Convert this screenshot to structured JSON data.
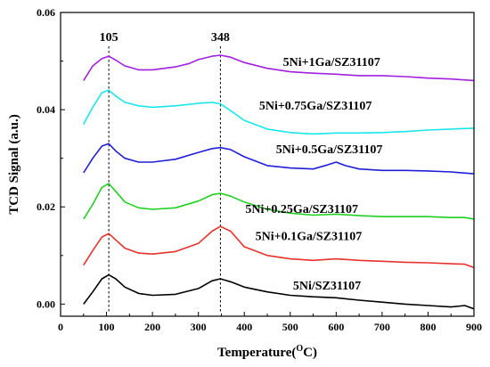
{
  "chart_data": {
    "type": "line",
    "title": "",
    "xlabel": "Temperature",
    "xlabel_unit_prefix": "(",
    "xlabel_unit_sup": "O",
    "xlabel_unit_suffix": "C)",
    "ylabel": "TCD Signal (a.u.)",
    "xlim": [
      0,
      900
    ],
    "ylim": [
      -0.0025,
      0.06
    ],
    "xticks": [
      0,
      100,
      200,
      300,
      400,
      500,
      600,
      700,
      800,
      900
    ],
    "yticks": [
      0.0,
      0.02,
      0.04,
      0.06
    ],
    "ytick_labels": [
      "0.00",
      "0.02",
      "0.04",
      "0.06"
    ],
    "grid": false,
    "legend": "inline-right",
    "annotations": [
      {
        "label": "105",
        "x": 105
      },
      {
        "label": "348",
        "x": 348
      }
    ],
    "series": [
      {
        "name": "5Ni/SZ31107",
        "color": "#000000",
        "label_anchor": [
          580,
          0.003
        ],
        "x": [
          50,
          70,
          90,
          105,
          120,
          140,
          170,
          200,
          250,
          300,
          330,
          348,
          370,
          400,
          450,
          500,
          550,
          600,
          650,
          700,
          750,
          800,
          850,
          880,
          900
        ],
        "y": [
          0.0,
          0.0025,
          0.0052,
          0.006,
          0.0052,
          0.0035,
          0.0022,
          0.0018,
          0.002,
          0.0032,
          0.0048,
          0.0052,
          0.0046,
          0.0035,
          0.0025,
          0.0018,
          0.0015,
          0.0013,
          0.0008,
          0.0004,
          0.0,
          -0.0003,
          -0.0006,
          -0.0003,
          -0.001
        ]
      },
      {
        "name": "5Ni+0.1Ga/SZ31107",
        "color": "#e8312c",
        "label_anchor": [
          540,
          0.0132
        ],
        "x": [
          50,
          70,
          90,
          105,
          120,
          140,
          170,
          200,
          250,
          300,
          330,
          348,
          370,
          400,
          450,
          500,
          550,
          600,
          650,
          700,
          750,
          800,
          850,
          880,
          900
        ],
        "y": [
          0.008,
          0.011,
          0.0138,
          0.0145,
          0.0132,
          0.0115,
          0.0105,
          0.0103,
          0.0108,
          0.0125,
          0.015,
          0.016,
          0.015,
          0.0118,
          0.01,
          0.0093,
          0.009,
          0.0093,
          0.009,
          0.0088,
          0.0086,
          0.0085,
          0.0083,
          0.0082,
          0.0075
        ]
      },
      {
        "name": "5Ni+0.25Ga/SZ31107",
        "color": "#1fd01f",
        "label_anchor": [
          525,
          0.0188
        ],
        "x": [
          50,
          70,
          90,
          105,
          120,
          140,
          170,
          200,
          250,
          300,
          330,
          348,
          370,
          400,
          450,
          500,
          550,
          600,
          650,
          700,
          750,
          800,
          850,
          880,
          900
        ],
        "y": [
          0.0175,
          0.0205,
          0.024,
          0.0248,
          0.0232,
          0.021,
          0.0198,
          0.0195,
          0.0198,
          0.0212,
          0.0225,
          0.0228,
          0.0222,
          0.021,
          0.0195,
          0.0187,
          0.0183,
          0.0185,
          0.0182,
          0.018,
          0.018,
          0.018,
          0.0178,
          0.0178,
          0.0175
        ]
      },
      {
        "name": "5Ni+0.5Ga/SZ31107",
        "color": "#1f1fd8",
        "label_anchor": [
          585,
          0.031
        ],
        "x": [
          50,
          70,
          90,
          105,
          120,
          140,
          170,
          200,
          250,
          300,
          330,
          348,
          370,
          400,
          450,
          500,
          550,
          580,
          600,
          620,
          650,
          700,
          750,
          800,
          850,
          900
        ],
        "y": [
          0.027,
          0.03,
          0.0325,
          0.033,
          0.0315,
          0.03,
          0.0292,
          0.0292,
          0.0298,
          0.0312,
          0.032,
          0.0322,
          0.0318,
          0.0303,
          0.0285,
          0.028,
          0.0278,
          0.0286,
          0.0292,
          0.0285,
          0.0278,
          0.0275,
          0.0275,
          0.0274,
          0.0272,
          0.0268
        ]
      },
      {
        "name": "5Ni+0.75Ga/SZ31107",
        "color": "#19e6ea",
        "label_anchor": [
          555,
          0.04
        ],
        "x": [
          50,
          70,
          90,
          105,
          120,
          140,
          170,
          200,
          250,
          300,
          330,
          348,
          370,
          400,
          450,
          500,
          550,
          600,
          650,
          700,
          750,
          800,
          850,
          900
        ],
        "y": [
          0.037,
          0.0405,
          0.0435,
          0.044,
          0.0428,
          0.0415,
          0.0408,
          0.0405,
          0.0408,
          0.0413,
          0.0415,
          0.0412,
          0.0398,
          0.0378,
          0.036,
          0.0353,
          0.035,
          0.0352,
          0.0352,
          0.0353,
          0.0355,
          0.0358,
          0.036,
          0.0362
        ]
      },
      {
        "name": "5Ni+1Ga/SZ31107",
        "color": "#a020e0",
        "label_anchor": [
          590,
          0.049
        ],
        "x": [
          50,
          70,
          90,
          105,
          120,
          140,
          170,
          200,
          250,
          280,
          300,
          330,
          348,
          370,
          400,
          450,
          500,
          550,
          600,
          650,
          700,
          750,
          800,
          850,
          900
        ],
        "y": [
          0.046,
          0.049,
          0.0505,
          0.051,
          0.0502,
          0.049,
          0.0482,
          0.0482,
          0.0488,
          0.0495,
          0.0503,
          0.051,
          0.0512,
          0.0508,
          0.0497,
          0.0485,
          0.0478,
          0.0475,
          0.0473,
          0.047,
          0.047,
          0.0468,
          0.0465,
          0.0463,
          0.046
        ]
      }
    ]
  }
}
